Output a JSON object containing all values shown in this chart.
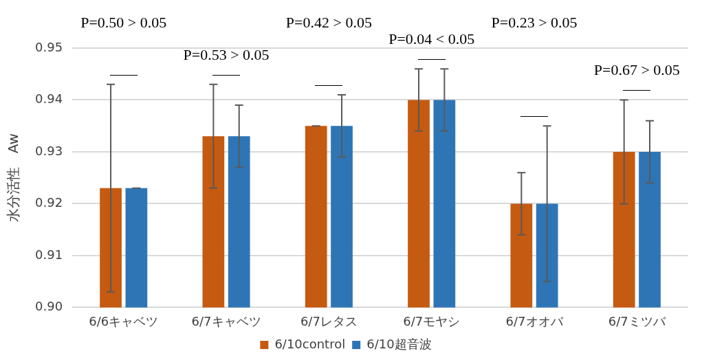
{
  "chart_data": {
    "type": "bar",
    "ylabel": "水分活性　Aw",
    "categories": [
      "6/6キャベツ",
      "6/7キャベツ",
      "6/7レタス",
      "6/7モヤシ",
      "6/7オオバ",
      "6/7ミツバ"
    ],
    "series": [
      {
        "name": "6/10control",
        "color": "#c55a11",
        "values": [
          0.923,
          0.933,
          0.935,
          0.94,
          0.92,
          0.93
        ],
        "errors": [
          0.02,
          0.01,
          0,
          0.006,
          0.006,
          0.01
        ]
      },
      {
        "name": "6/10超音波",
        "color": "#2e75b6",
        "values": [
          0.923,
          0.933,
          0.935,
          0.94,
          0.92,
          0.93
        ],
        "errors": [
          0,
          0.006,
          0.006,
          0.006,
          0.015,
          0.006
        ]
      }
    ],
    "ylim": [
      0.9,
      0.95
    ],
    "yticks": [
      {
        "value": 0.9,
        "label": "0.90"
      },
      {
        "value": 0.91,
        "label": "0.91"
      },
      {
        "value": 0.92,
        "label": "0.92"
      },
      {
        "value": 0.93,
        "label": "0.93"
      },
      {
        "value": 0.94,
        "label": "0.94"
      },
      {
        "value": 0.95,
        "label": "0.95"
      }
    ],
    "grid": "y",
    "legend": "bottom",
    "annotations": [
      "P=0.50 > 0.05",
      "P=0.53 > 0.05",
      "P=0.42 > 0.05",
      "P=0.04 < 0.05",
      "P=0.23 > 0.05",
      "P=0.67 > 0.05"
    ]
  }
}
